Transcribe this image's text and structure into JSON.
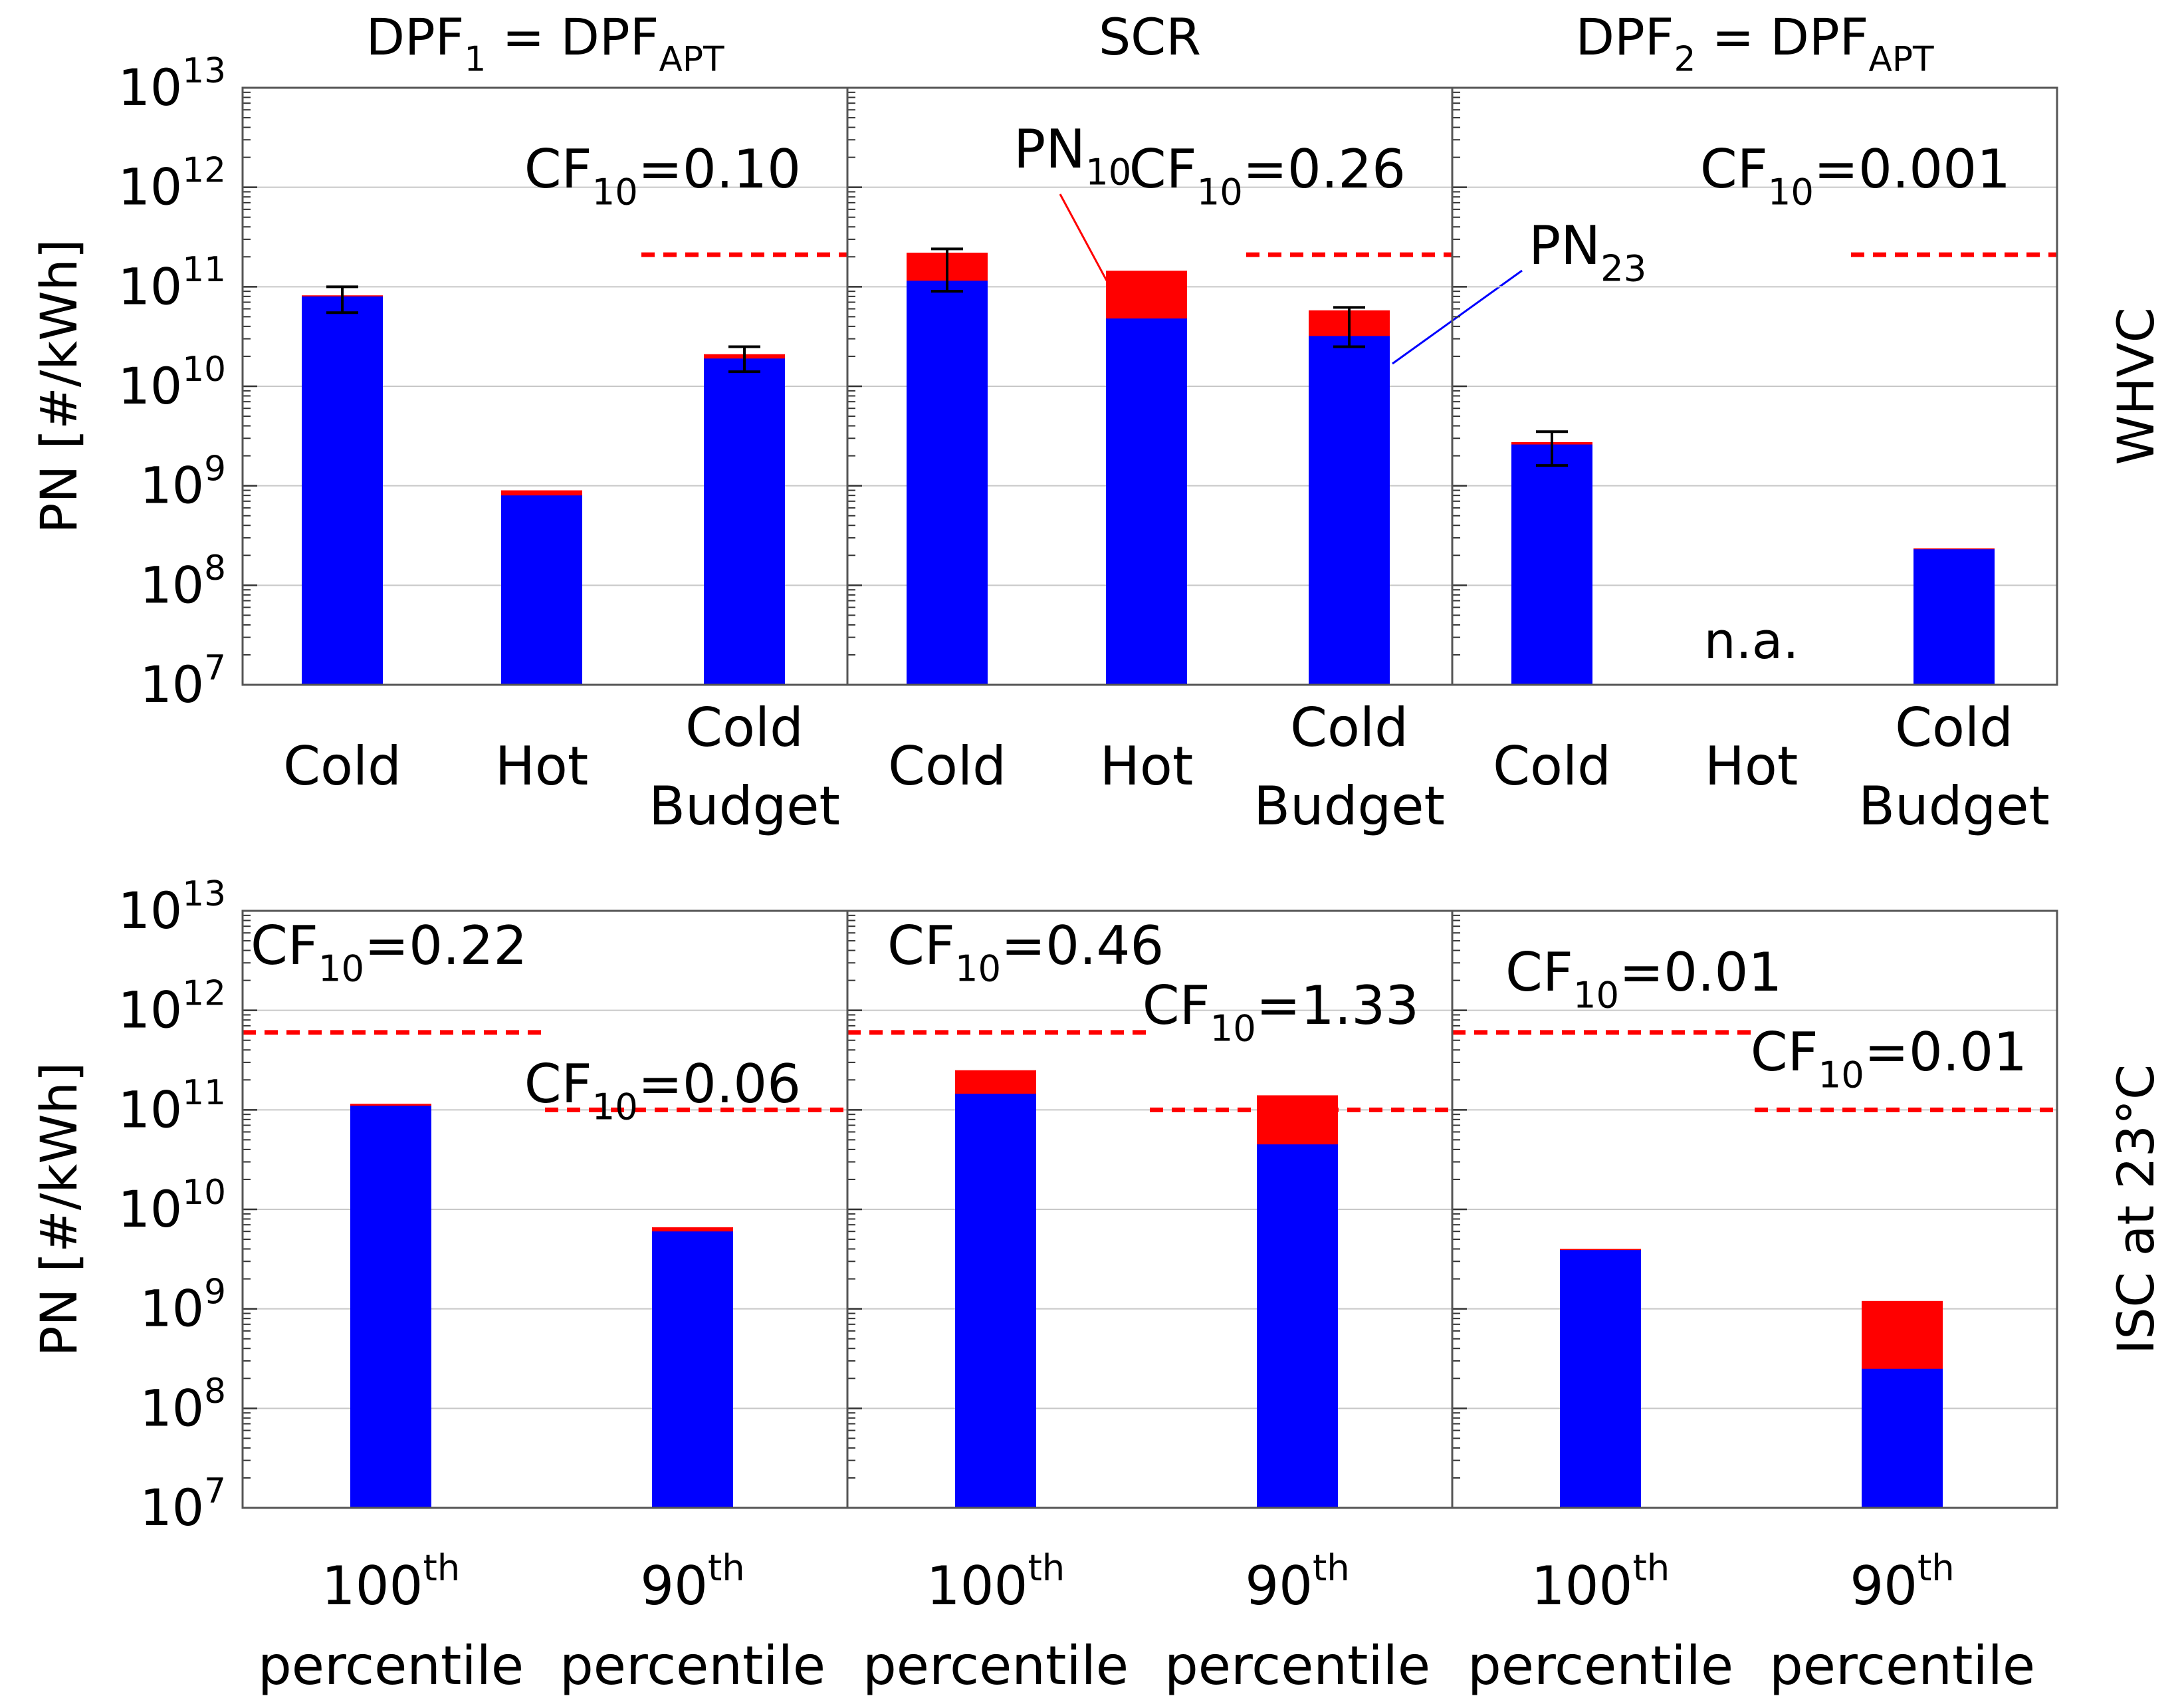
{
  "chart_data": {
    "type": "bar",
    "stacked": true,
    "y_scale": "log",
    "ylim": [
      10000000,
      10000000000000
    ],
    "ylabel": "PN [#/kWh]",
    "y_ticks": [
      {
        "value": 10000000,
        "base": "10",
        "exp": "7"
      },
      {
        "value": 100000000,
        "base": "10",
        "exp": "8"
      },
      {
        "value": 1000000000,
        "base": "10",
        "exp": "9"
      },
      {
        "value": 10000000000,
        "base": "10",
        "exp": "10"
      },
      {
        "value": 100000000000,
        "base": "10",
        "exp": "11"
      },
      {
        "value": 1000000000000,
        "base": "10",
        "exp": "12"
      },
      {
        "value": 10000000000000,
        "base": "10",
        "exp": "13"
      }
    ],
    "columns": [
      {
        "main": "DPF",
        "sub": "1",
        "mid": " = DPF",
        "sub2": "APT"
      },
      {
        "main": "SCR",
        "sub": "",
        "mid": "",
        "sub2": ""
      },
      {
        "main": "DPF",
        "sub": "2",
        "mid": " = DPF",
        "sub2": "APT"
      }
    ],
    "rows": [
      {
        "label": "WHVC",
        "categories": [
          [
            "Cold"
          ],
          [
            "Hot"
          ],
          [
            "Cold",
            "Budget"
          ]
        ],
        "panels": [
          {
            "pn23": [
              80000000000,
              800000000,
              19000000000
            ],
            "total": [
              82000000000,
              900000000,
              21000000000
            ],
            "err_low": [
              55000000000,
              null,
              14000000000
            ],
            "err_high": [
              100000000000,
              null,
              25000000000
            ],
            "limit": 210000000000,
            "limit_from": 2,
            "cf": [
              {
                "pre": "CF",
                "sub": "10",
                "post": "=0.10"
              }
            ],
            "na": [],
            "series_labels": false
          },
          {
            "pn23": [
              115000000000,
              48000000000,
              32000000000
            ],
            "total": [
              220000000000,
              145000000000,
              58000000000
            ],
            "err_low": [
              90000000000,
              null,
              25000000000
            ],
            "err_high": [
              240000000000,
              null,
              62000000000
            ],
            "limit": 210000000000,
            "limit_from": 2,
            "cf": [
              {
                "pre": "CF",
                "sub": "10",
                "post": "=0.26"
              }
            ],
            "na": [],
            "series_labels": true
          },
          {
            "pn23": [
              2600000000,
              null,
              230000000
            ],
            "total": [
              2750000000,
              null,
              235000000
            ],
            "err_low": [
              1600000000,
              null,
              null
            ],
            "err_high": [
              3500000000,
              null,
              null
            ],
            "limit": 210000000000,
            "limit_from": 2,
            "cf": [
              {
                "pre": "CF",
                "sub": "10",
                "post": "=0.001"
              }
            ],
            "na": [
              1
            ],
            "series_labels": false
          }
        ]
      },
      {
        "label": "ISC at 23°C",
        "categories": [
          [
            "100",
            "th",
            "percentile"
          ],
          [
            "90",
            "th",
            "percentile"
          ]
        ],
        "panels": [
          {
            "pn23": [
              110000000000,
              6000000000
            ],
            "total": [
              115000000000,
              6600000000
            ],
            "limits": [
              600000000000,
              100000000000
            ],
            "cf": [
              {
                "pre": "CF",
                "sub": "10",
                "post": "=0.22"
              },
              {
                "pre": "CF",
                "sub": "10",
                "post": "=0.06"
              }
            ]
          },
          {
            "pn23": [
              145000000000,
              45000000000
            ],
            "total": [
              250000000000,
              140000000000
            ],
            "limits": [
              600000000000,
              100000000000
            ],
            "cf": [
              {
                "pre": "CF",
                "sub": "10",
                "post": "=0.46"
              },
              {
                "pre": "CF",
                "sub": "10",
                "post": "=1.33"
              }
            ]
          },
          {
            "pn23": [
              3900000000,
              250000000
            ],
            "total": [
              4000000000,
              1200000000
            ],
            "limits": [
              600000000000,
              100000000000
            ],
            "cf": [
              {
                "pre": "CF",
                "sub": "10",
                "post": "=0.01"
              },
              {
                "pre": "CF",
                "sub": "10",
                "post": "=0.01"
              }
            ]
          }
        ]
      }
    ],
    "series": [
      {
        "name": "PN23",
        "base": "PN",
        "sub": "23",
        "color": "#0000ff"
      },
      {
        "name": "PN10",
        "base": "PN",
        "sub": "10",
        "color": "#ff0000"
      }
    ],
    "na_label": "n.a.",
    "limit_color": "#ff0000"
  }
}
